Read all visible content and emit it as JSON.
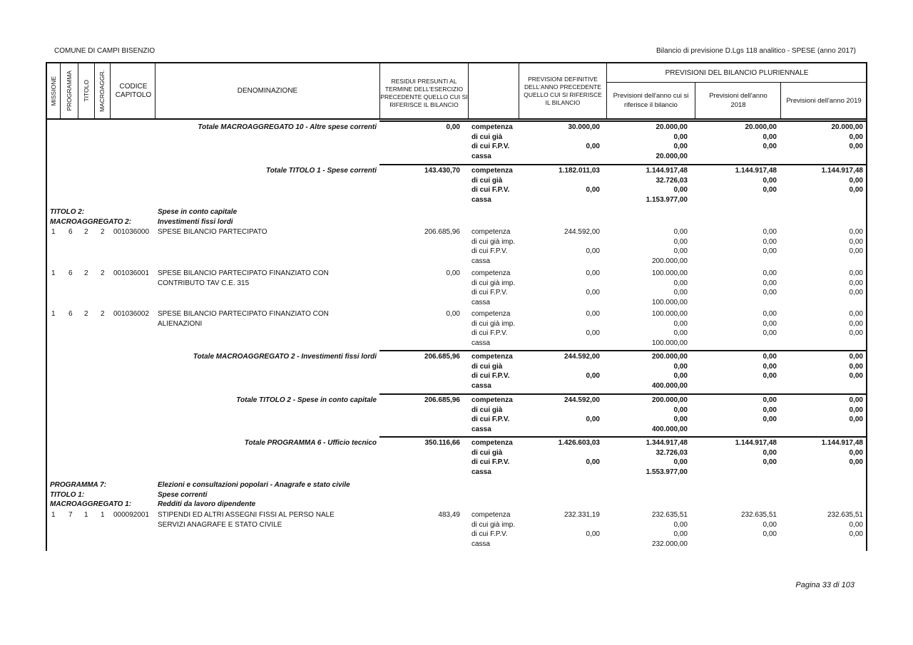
{
  "page_header": {
    "entity": "COMUNE DI CAMPI BISENZIO",
    "report_title": "Bilancio di previsione D.Lgs 118 analitico - SPESE (anno 2017)"
  },
  "columns": {
    "missione": "MISSIONE",
    "programma": "PROGRAMMA",
    "titolo": "TITOLO",
    "macroaggr": "MACROAGGR.",
    "codice": "CODICE CAPITOLO",
    "denominazione": "DENOMINAZIONE",
    "residui": "RESIDUI PRESUNTI AL TERMINE DELL'ESERCIZIO PRECEDENTE QUELLO CUI SI RIFERISCE IL BILANCIO",
    "prev_def": "PREVISIONI DEFINITIVE DELL'ANNO PRECEDENTE QUELLO CUI SI RIFERISCE IL BILANCIO",
    "pluriennale": "PREVISIONI DEL BILANCIO PLURIENNALE",
    "anno": "Previsioni dell'anno cui si riferisce il bilancio",
    "y2018": "Previsioni dell'anno 2018",
    "y2019": "Previsioni dell'anno 2019"
  },
  "blocks": [
    {
      "kind": "total",
      "label": "Totale MACROAGGREGATO 10 - Altre spese correnti",
      "residui": "0,00",
      "lines": [
        {
          "label": "competenza",
          "prev": "30.000,00",
          "anno": "20.000,00",
          "y2018": "20.000,00",
          "y2019": "20.000,00"
        },
        {
          "label": "di cui già",
          "prev": "",
          "anno": "0,00",
          "y2018": "0,00",
          "y2019": "0,00"
        },
        {
          "label": "di cui F.P.V.",
          "prev": "0,00",
          "anno": "0,00",
          "y2018": "0,00",
          "y2019": "0,00"
        },
        {
          "label": "cassa",
          "prev": "",
          "anno": "20.000,00",
          "y2018": "",
          "y2019": ""
        }
      ]
    },
    {
      "kind": "total",
      "label": "Totale TITOLO 1 - Spese correnti",
      "residui": "143.430,70",
      "lines": [
        {
          "label": "competenza",
          "prev": "1.182.011,03",
          "anno": "1.144.917,48",
          "y2018": "1.144.917,48",
          "y2019": "1.144.917,48"
        },
        {
          "label": "di cui già",
          "prev": "",
          "anno": "32.726,03",
          "y2018": "0,00",
          "y2019": "0,00"
        },
        {
          "label": "di cui F.P.V.",
          "prev": "0,00",
          "anno": "0,00",
          "y2018": "0,00",
          "y2019": "0,00"
        },
        {
          "label": "cassa",
          "prev": "",
          "anno": "1.153.977,00",
          "y2018": "",
          "y2019": ""
        }
      ]
    },
    {
      "kind": "heading",
      "rows": [
        {
          "key": "TITOLO 2:",
          "value": "Spese in conto capitale"
        },
        {
          "key": "MACROAGGREGATO 2:",
          "value": "Investimenti fissi lordi"
        }
      ]
    },
    {
      "kind": "item",
      "codes": [
        "1",
        "6",
        "2",
        "2"
      ],
      "codice": "001036000",
      "denominazione": [
        "SPESE BILANCIO PARTECIPATO"
      ],
      "residui": "206.685,96",
      "lines": [
        {
          "label": "competenza",
          "prev": "244.592,00",
          "anno": "0,00",
          "y2018": "0,00",
          "y2019": "0,00"
        },
        {
          "label": "di cui già imp.",
          "prev": "",
          "anno": "0,00",
          "y2018": "0,00",
          "y2019": "0,00"
        },
        {
          "label": "di cui F.P.V.",
          "prev": "0,00",
          "anno": "0,00",
          "y2018": "0,00",
          "y2019": "0,00"
        },
        {
          "label": "cassa",
          "prev": "",
          "anno": "200.000,00",
          "y2018": "",
          "y2019": ""
        }
      ]
    },
    {
      "kind": "item",
      "codes": [
        "1",
        "6",
        "2",
        "2"
      ],
      "codice": "001036001",
      "denominazione": [
        "SPESE BILANCIO PARTECIPATO FINANZIATO CON",
        "CONTRIBUTO TAV C.E. 315"
      ],
      "residui": "0,00",
      "lines": [
        {
          "label": "competenza",
          "prev": "0,00",
          "anno": "100.000,00",
          "y2018": "0,00",
          "y2019": "0,00"
        },
        {
          "label": "di cui già imp.",
          "prev": "",
          "anno": "0,00",
          "y2018": "0,00",
          "y2019": "0,00"
        },
        {
          "label": "di cui F.P.V.",
          "prev": "0,00",
          "anno": "0,00",
          "y2018": "0,00",
          "y2019": "0,00"
        },
        {
          "label": "cassa",
          "prev": "",
          "anno": "100.000,00",
          "y2018": "",
          "y2019": ""
        }
      ]
    },
    {
      "kind": "item",
      "codes": [
        "1",
        "6",
        "2",
        "2"
      ],
      "codice": "001036002",
      "denominazione": [
        "SPESE BILANCIO PARTECIPATO FINANZIATO CON",
        "ALIENAZIONI"
      ],
      "residui": "0,00",
      "lines": [
        {
          "label": "competenza",
          "prev": "0,00",
          "anno": "100.000,00",
          "y2018": "0,00",
          "y2019": "0,00"
        },
        {
          "label": "di cui già imp.",
          "prev": "",
          "anno": "0,00",
          "y2018": "0,00",
          "y2019": "0,00"
        },
        {
          "label": "di cui F.P.V.",
          "prev": "0,00",
          "anno": "0,00",
          "y2018": "0,00",
          "y2019": "0,00"
        },
        {
          "label": "cassa",
          "prev": "",
          "anno": "100.000,00",
          "y2018": "",
          "y2019": ""
        }
      ]
    },
    {
      "kind": "total",
      "label": "Totale MACROAGGREGATO 2 - Investimenti fissi lordi",
      "residui": "206.685,96",
      "lines": [
        {
          "label": "competenza",
          "prev": "244.592,00",
          "anno": "200.000,00",
          "y2018": "0,00",
          "y2019": "0,00"
        },
        {
          "label": "di cui già",
          "prev": "",
          "anno": "0,00",
          "y2018": "0,00",
          "y2019": "0,00"
        },
        {
          "label": "di cui F.P.V.",
          "prev": "0,00",
          "anno": "0,00",
          "y2018": "0,00",
          "y2019": "0,00"
        },
        {
          "label": "cassa",
          "prev": "",
          "anno": "400.000,00",
          "y2018": "",
          "y2019": ""
        }
      ]
    },
    {
      "kind": "total",
      "label": "Totale TITOLO 2 - Spese in conto capitale",
      "residui": "206.685,96",
      "lines": [
        {
          "label": "competenza",
          "prev": "244.592,00",
          "anno": "200.000,00",
          "y2018": "0,00",
          "y2019": "0,00"
        },
        {
          "label": "di cui già",
          "prev": "",
          "anno": "0,00",
          "y2018": "0,00",
          "y2019": "0,00"
        },
        {
          "label": "di cui F.P.V.",
          "prev": "0,00",
          "anno": "0,00",
          "y2018": "0,00",
          "y2019": "0,00"
        },
        {
          "label": "cassa",
          "prev": "",
          "anno": "400.000,00",
          "y2018": "",
          "y2019": ""
        }
      ]
    },
    {
      "kind": "total",
      "label": "Totale PROGRAMMA 6 - Ufficio tecnico",
      "residui": "350.116,66",
      "lines": [
        {
          "label": "competenza",
          "prev": "1.426.603,03",
          "anno": "1.344.917,48",
          "y2018": "1.144.917,48",
          "y2019": "1.144.917,48"
        },
        {
          "label": "di cui già",
          "prev": "",
          "anno": "32.726,03",
          "y2018": "0,00",
          "y2019": "0,00"
        },
        {
          "label": "di cui F.P.V.",
          "prev": "0,00",
          "anno": "0,00",
          "y2018": "0,00",
          "y2019": "0,00"
        },
        {
          "label": "cassa",
          "prev": "",
          "anno": "1.553.977,00",
          "y2018": "",
          "y2019": ""
        }
      ]
    },
    {
      "kind": "heading",
      "rows": [
        {
          "key": "PROGRAMMA 7:",
          "value": "Elezioni e consultazioni popolari - Anagrafe e stato civile"
        },
        {
          "key": "TITOLO 1:",
          "value": "Spese correnti"
        },
        {
          "key": "MACROAGGREGATO 1:",
          "value": "Redditi da lavoro dipendente"
        }
      ]
    },
    {
      "kind": "item",
      "codes": [
        "1",
        "7",
        "1",
        "1"
      ],
      "codice": "000092001",
      "denominazione": [
        "STIPENDI ED ALTRI ASSEGNI FISSI AL PERSO NALE",
        "SERVIZI ANAGRAFE E STATO CIVILE"
      ],
      "residui": "483,49",
      "lines": [
        {
          "label": "competenza",
          "prev": "232.331,19",
          "anno": "232.635,51",
          "y2018": "232.635,51",
          "y2019": "232.635,51"
        },
        {
          "label": "di cui già imp.",
          "prev": "",
          "anno": "0,00",
          "y2018": "0,00",
          "y2019": "0,00"
        },
        {
          "label": "di cui F.P.V.",
          "prev": "0,00",
          "anno": "0,00",
          "y2018": "0,00",
          "y2019": "0,00"
        },
        {
          "label": "cassa",
          "prev": "",
          "anno": "232.000,00",
          "y2018": "",
          "y2019": ""
        }
      ]
    }
  ],
  "footer": {
    "page": "Pagina 33 di 103"
  }
}
